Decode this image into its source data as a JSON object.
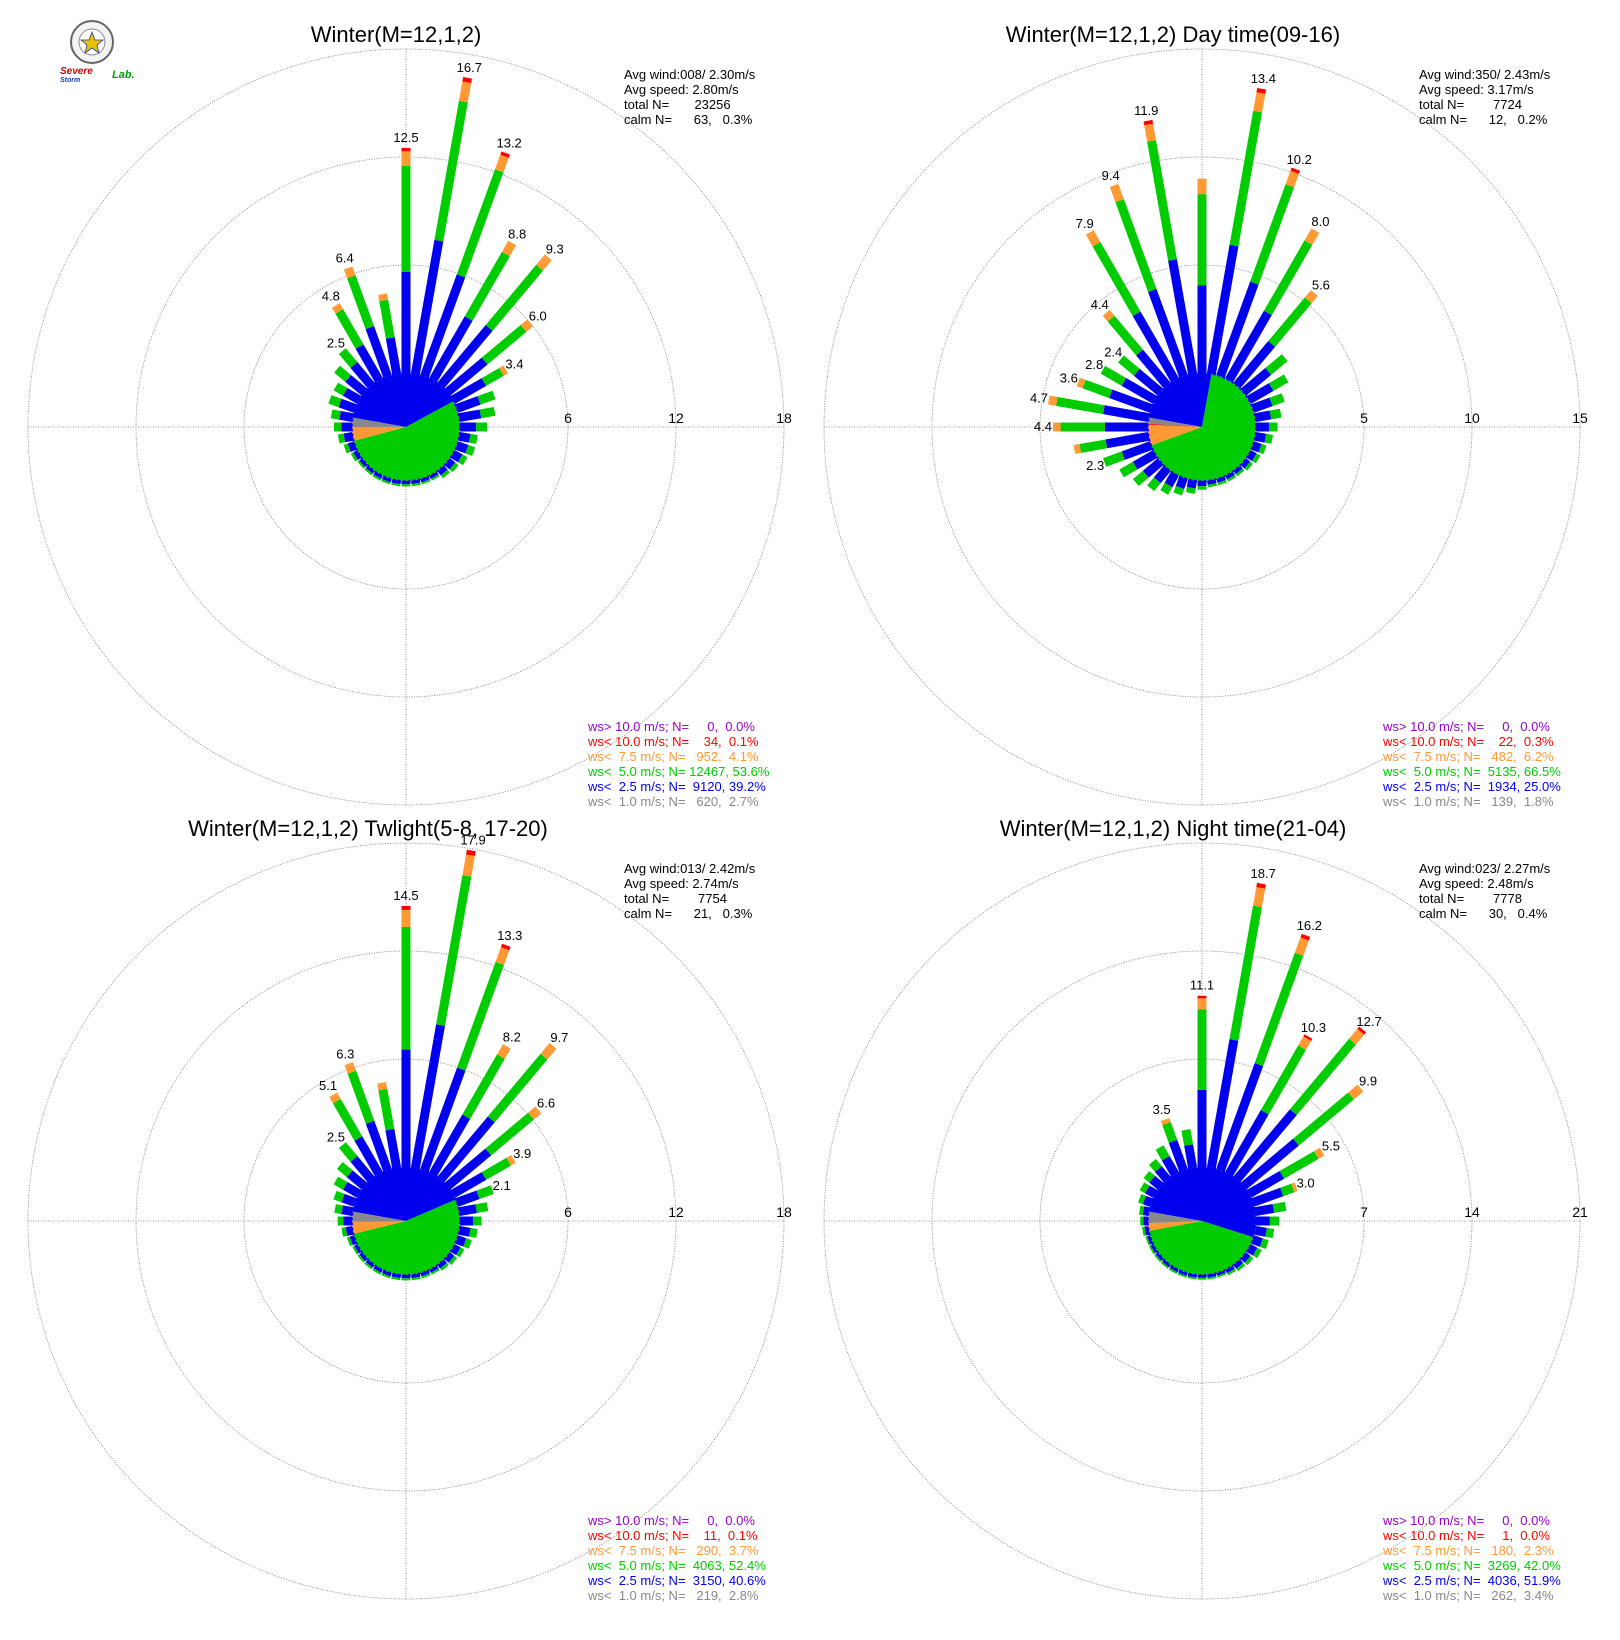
{
  "logo": {
    "text_severe": "Severe",
    "text_storm": "Storm",
    "text_lab": "Lab."
  },
  "colors": {
    "gt10": "#9900cc",
    "lt10": "#ff0000",
    "lt75": "#ff9933",
    "lt5": "#00cc00",
    "lt25": "#0000ee",
    "lt1": "#888888"
  },
  "chart_data": [
    {
      "type": "polar-bar",
      "title": "Winter(M=12,1,2)",
      "stats": [
        "Avg wind:008/ 2.30m/s",
        "Avg speed: 2.80m/s",
        "total N=       23256",
        "calm N=      63,   0.3%"
      ],
      "ticks": [
        6,
        12,
        18
      ],
      "legend": [
        "ws> 10.0 m/s; N=     0,  0.0%",
        "ws< 10.0 m/s; N=    34,  0.1%",
        "ws<  7.5 m/s; N=   952,  4.1%",
        "ws<  5.0 m/s; N= 12467, 53.6%",
        "ws<  2.5 m/s; N=  9120, 39.2%",
        "ws<  1.0 m/s; N=   620,  2.7%"
      ],
      "bars": [
        {
          "label": "12.5",
          "v": 12.5
        },
        {
          "label": "16.7",
          "v": 16.7
        },
        {
          "label": "13.2",
          "v": 13.2
        },
        {
          "label": "8.8",
          "v": 8.8
        },
        {
          "label": "9.3",
          "v": 9.3
        },
        {
          "label": "6.0",
          "v": 6.0
        },
        {
          "label": "3.4",
          "v": 3.4
        },
        {
          "label": "",
          "v": 2.2
        },
        {
          "label": "",
          "v": 2.0
        },
        {
          "label": "",
          "v": 1.5
        },
        {
          "label": "",
          "v": 1.0
        },
        {
          "label": "",
          "v": 1.0
        },
        {
          "label": "",
          "v": 0.8
        },
        {
          "label": "",
          "v": 0.6
        },
        {
          "label": "",
          "v": 0.5
        },
        {
          "label": "",
          "v": 0.3
        },
        {
          "label": "",
          "v": 0.3
        },
        {
          "label": "",
          "v": 0.3
        },
        {
          "label": "",
          "v": 0.3
        },
        {
          "label": "",
          "v": 0.3
        },
        {
          "label": "",
          "v": 0.3
        },
        {
          "label": "",
          "v": 0.3
        },
        {
          "label": "",
          "v": 0.3
        },
        {
          "label": "",
          "v": 0.3
        },
        {
          "label": "",
          "v": 0.4
        },
        {
          "label": "",
          "v": 0.6
        },
        {
          "label": "",
          "v": 0.8
        },
        {
          "label": "",
          "v": 1.0
        },
        {
          "label": "",
          "v": 1.2
        },
        {
          "label": "",
          "v": 1.5
        },
        {
          "label": "",
          "v": 1.5
        },
        {
          "label": "",
          "v": 2.0
        },
        {
          "label": "2.5",
          "v": 2.5
        },
        {
          "label": "4.8",
          "v": 4.8
        },
        {
          "label": "6.4",
          "v": 6.4
        },
        {
          "label": "",
          "v": 4.5
        }
      ]
    },
    {
      "type": "polar-bar",
      "title": "Winter(M=12,1,2) Day time(09-16)",
      "stats": [
        "Avg wind:350/ 2.43m/s",
        "Avg speed: 3.17m/s",
        "total N=        7724",
        "calm N=      12,   0.2%"
      ],
      "ticks": [
        5,
        10,
        15
      ],
      "legend": [
        "ws> 10.0 m/s; N=     0,  0.0%",
        "ws< 10.0 m/s; N=    22,  0.3%",
        "ws<  7.5 m/s; N=   482,  6.2%",
        "ws<  5.0 m/s; N=  5135, 66.5%",
        "ws<  2.5 m/s; N=  1934, 25.0%",
        "ws<  1.0 m/s; N=   139,  1.8%"
      ],
      "bars": [
        {
          "label": "",
          "v": 9.0
        },
        {
          "label": "13.4",
          "v": 13.4
        },
        {
          "label": "10.2",
          "v": 10.2
        },
        {
          "label": "8.0",
          "v": 8.0
        },
        {
          "label": "5.6",
          "v": 5.6
        },
        {
          "label": "",
          "v": 2.5
        },
        {
          "label": "",
          "v": 2.0
        },
        {
          "label": "",
          "v": 1.5
        },
        {
          "label": "",
          "v": 1.2
        },
        {
          "label": "",
          "v": 1.0
        },
        {
          "label": "",
          "v": 0.8
        },
        {
          "label": "",
          "v": 0.6
        },
        {
          "label": "",
          "v": 0.5
        },
        {
          "label": "",
          "v": 0.4
        },
        {
          "label": "",
          "v": 0.3
        },
        {
          "label": "",
          "v": 0.3
        },
        {
          "label": "",
          "v": 0.3
        },
        {
          "label": "",
          "v": 0.3
        },
        {
          "label": "",
          "v": 0.4
        },
        {
          "label": "",
          "v": 0.6
        },
        {
          "label": "",
          "v": 0.8
        },
        {
          "label": "",
          "v": 1.0
        },
        {
          "label": "",
          "v": 1.2
        },
        {
          "label": "",
          "v": 1.5
        },
        {
          "label": "",
          "v": 1.8
        },
        {
          "label": "2.3",
          "v": 2.3
        },
        {
          "label": "",
          "v": 3.5
        },
        {
          "label": "4.4",
          "v": 4.4
        },
        {
          "label": "4.7",
          "v": 4.7
        },
        {
          "label": "3.6",
          "v": 3.6
        },
        {
          "label": "2.8",
          "v": 2.8
        },
        {
          "label": "2.4",
          "v": 2.4
        },
        {
          "label": "4.4",
          "v": 4.4
        },
        {
          "label": "7.9",
          "v": 7.9
        },
        {
          "label": "9.4",
          "v": 9.4
        },
        {
          "label": "11.9",
          "v": 11.9
        }
      ]
    },
    {
      "type": "polar-bar",
      "title": "Winter(M=12,1,2) Twlight(5-8, 17-20)",
      "stats": [
        "Avg wind:013/ 2.42m/s",
        "Avg speed: 2.74m/s",
        "total N=        7754",
        "calm N=      21,   0.3%"
      ],
      "ticks": [
        6,
        12,
        18
      ],
      "legend": [
        "ws> 10.0 m/s; N=     0,  0.0%",
        "ws< 10.0 m/s; N=    11,  0.1%",
        "ws<  7.5 m/s; N=   290,  3.7%",
        "ws<  5.0 m/s; N=  4063, 52.4%",
        "ws<  2.5 m/s; N=  3150, 40.6%",
        "ws<  1.0 m/s; N=   219,  2.8%"
      ],
      "bars": [
        {
          "label": "14.5",
          "v": 14.5
        },
        {
          "label": "17.9",
          "v": 17.9
        },
        {
          "label": "13.3",
          "v": 13.3
        },
        {
          "label": "8.2",
          "v": 8.2
        },
        {
          "label": "9.7",
          "v": 9.7
        },
        {
          "label": "6.6",
          "v": 6.6
        },
        {
          "label": "3.9",
          "v": 3.9
        },
        {
          "label": "2.1",
          "v": 2.1
        },
        {
          "label": "",
          "v": 1.6
        },
        {
          "label": "",
          "v": 1.2
        },
        {
          "label": "",
          "v": 1.0
        },
        {
          "label": "",
          "v": 0.8
        },
        {
          "label": "",
          "v": 0.6
        },
        {
          "label": "",
          "v": 0.5
        },
        {
          "label": "",
          "v": 0.4
        },
        {
          "label": "",
          "v": 0.3
        },
        {
          "label": "",
          "v": 0.3
        },
        {
          "label": "",
          "v": 0.3
        },
        {
          "label": "",
          "v": 0.3
        },
        {
          "label": "",
          "v": 0.3
        },
        {
          "label": "",
          "v": 0.3
        },
        {
          "label": "",
          "v": 0.3
        },
        {
          "label": "",
          "v": 0.3
        },
        {
          "label": "",
          "v": 0.3
        },
        {
          "label": "",
          "v": 0.3
        },
        {
          "label": "",
          "v": 0.4
        },
        {
          "label": "",
          "v": 0.6
        },
        {
          "label": "",
          "v": 0.8
        },
        {
          "label": "",
          "v": 1.0
        },
        {
          "label": "",
          "v": 1.2
        },
        {
          "label": "",
          "v": 1.5
        },
        {
          "label": "",
          "v": 1.8
        },
        {
          "label": "2.5",
          "v": 2.5
        },
        {
          "label": "5.1",
          "v": 5.1
        },
        {
          "label": "6.3",
          "v": 6.3
        },
        {
          "label": "",
          "v": 4.8
        }
      ]
    },
    {
      "type": "polar-bar",
      "title": "Winter(M=12,1,2) Night time(21-04)",
      "stats": [
        "Avg wind:023/ 2.27m/s",
        "Avg speed: 2.48m/s",
        "total N=        7778",
        "calm N=      30,   0.4%"
      ],
      "ticks": [
        7,
        14,
        21
      ],
      "legend": [
        "ws> 10.0 m/s; N=     0,  0.0%",
        "ws< 10.0 m/s; N=     1,  0.0%",
        "ws<  7.5 m/s; N=   180,  2.3%",
        "ws<  5.0 m/s; N=  3269, 42.0%",
        "ws<  2.5 m/s; N=  4036, 51.9%",
        "ws<  1.0 m/s; N=   262,  3.4%"
      ],
      "bars": [
        {
          "label": "11.1",
          "v": 11.1
        },
        {
          "label": "18.7",
          "v": 18.7
        },
        {
          "label": "16.2",
          "v": 16.2
        },
        {
          "label": "10.3",
          "v": 10.3
        },
        {
          "label": "12.7",
          "v": 12.7
        },
        {
          "label": "9.9",
          "v": 9.9
        },
        {
          "label": "5.5",
          "v": 5.5
        },
        {
          "label": "3.0",
          "v": 3.0
        },
        {
          "label": "",
          "v": 2.0
        },
        {
          "label": "",
          "v": 1.5
        },
        {
          "label": "",
          "v": 1.2
        },
        {
          "label": "",
          "v": 1.0
        },
        {
          "label": "",
          "v": 0.8
        },
        {
          "label": "",
          "v": 0.6
        },
        {
          "label": "",
          "v": 0.5
        },
        {
          "label": "",
          "v": 0.4
        },
        {
          "label": "",
          "v": 0.3
        },
        {
          "label": "",
          "v": 0.3
        },
        {
          "label": "",
          "v": 0.3
        },
        {
          "label": "",
          "v": 0.3
        },
        {
          "label": "",
          "v": 0.3
        },
        {
          "label": "",
          "v": 0.3
        },
        {
          "label": "",
          "v": 0.3
        },
        {
          "label": "",
          "v": 0.3
        },
        {
          "label": "",
          "v": 0.3
        },
        {
          "label": "",
          "v": 0.3
        },
        {
          "label": "",
          "v": 0.4
        },
        {
          "label": "",
          "v": 0.5
        },
        {
          "label": "",
          "v": 0.6
        },
        {
          "label": "",
          "v": 0.8
        },
        {
          "label": "",
          "v": 1.0
        },
        {
          "label": "",
          "v": 1.2
        },
        {
          "label": "",
          "v": 1.5
        },
        {
          "label": "",
          "v": 2.0
        },
        {
          "label": "3.5",
          "v": 3.5
        },
        {
          "label": "",
          "v": 2.5
        }
      ]
    }
  ]
}
